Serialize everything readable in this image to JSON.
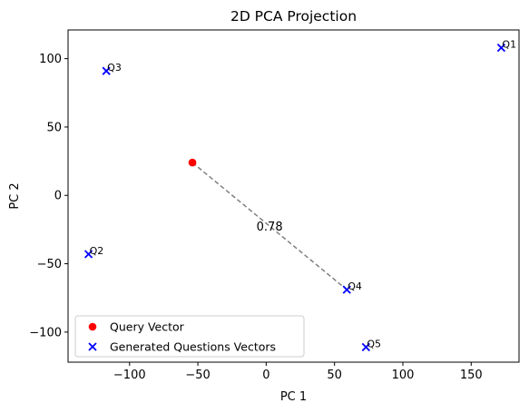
{
  "chart_data": {
    "type": "scatter",
    "title": "2D PCA Projection",
    "xlabel": "PC 1",
    "ylabel": "PC 2",
    "xlim": [
      -145,
      185
    ],
    "ylim": [
      -122,
      121
    ],
    "xticks": [
      -100,
      -50,
      0,
      50,
      100,
      150
    ],
    "yticks": [
      -100,
      -50,
      0,
      50,
      100
    ],
    "grid": false,
    "legend_position": "lower-left",
    "series": [
      {
        "name": "Query Vector",
        "marker": "circle",
        "color": "#ff0000",
        "points": [
          {
            "x": -54,
            "y": 24,
            "label": ""
          }
        ]
      },
      {
        "name": "Generated Questions Vectors",
        "marker": "x",
        "color": "#0000ff",
        "points": [
          {
            "x": 172,
            "y": 108,
            "label": "Q1"
          },
          {
            "x": -130,
            "y": -43,
            "label": "Q2"
          },
          {
            "x": -117,
            "y": 91,
            "label": "Q3"
          },
          {
            "x": 59,
            "y": -69,
            "label": "Q4"
          },
          {
            "x": 73,
            "y": -111,
            "label": "Q5"
          }
        ]
      }
    ],
    "lines": [
      {
        "from": [
          -54,
          24
        ],
        "to": [
          59,
          -69
        ],
        "style": "dashed",
        "color": "#808080",
        "label": "0.78"
      }
    ]
  }
}
